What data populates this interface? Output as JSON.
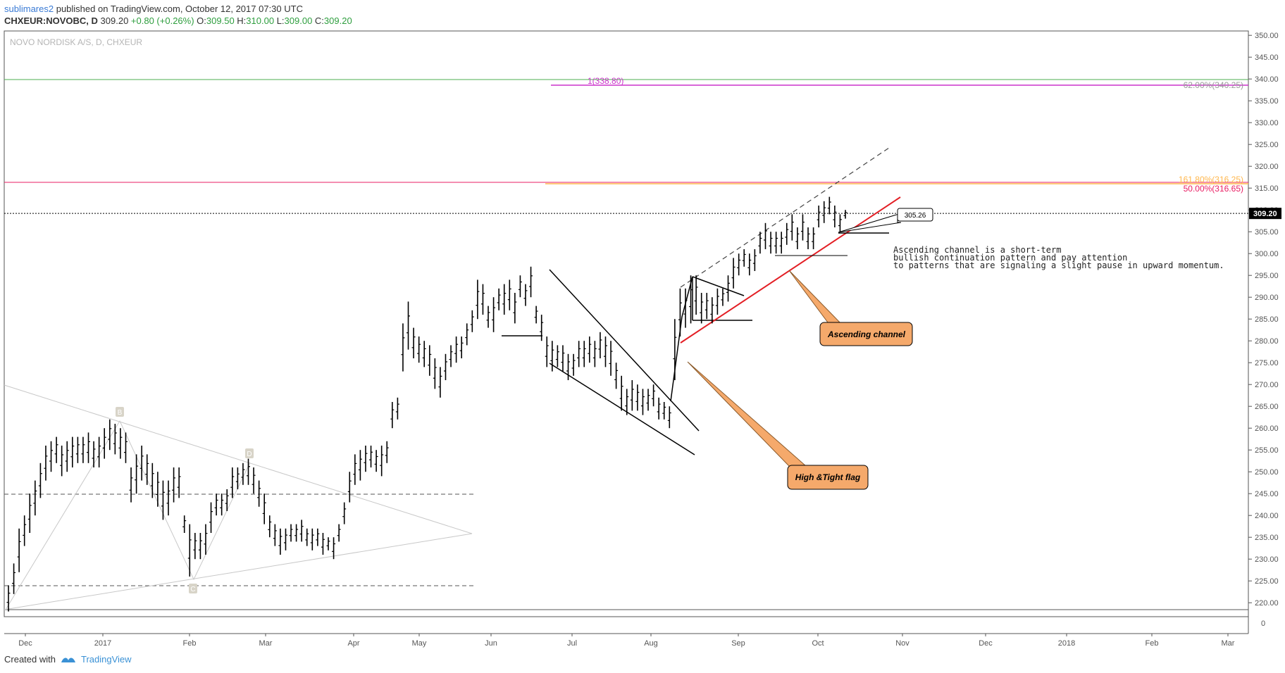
{
  "header": {
    "author": "sublimares2",
    "published_text": "published on TradingView.com, October 12, 2017 07:30 UTC",
    "symbol": "CHXEUR:NOVOBC, D",
    "last": "309.20",
    "change": "+0.80 (+0.26%)",
    "o_label": "O:",
    "o": "309.50",
    "h_label": "H:",
    "h": "310.00",
    "l_label": "L:",
    "l": "309.00",
    "c_label": "C:",
    "c": "309.20"
  },
  "chart_title": "NOVO NORDISK A/S, D, CHXEUR",
  "footer": {
    "created_with": "Created with",
    "brand": "TradingView"
  },
  "colors": {
    "candle": "#000000",
    "trend_red": "#e31e24",
    "green_line": "#4caf50",
    "pink_line": "#e91e63",
    "magenta": "#cc33cc",
    "orange": "#ffb74d",
    "callout_fill": "#f5a96b",
    "callout_stroke": "#8a5a2a",
    "triangle_gray": "#c8c8c8"
  },
  "chart_data": {
    "type": "ohlc",
    "yaxis_ticks": [
      350,
      345,
      340,
      335,
      330,
      325,
      320,
      315,
      310,
      305,
      300,
      295,
      290,
      285,
      280,
      275,
      270,
      265,
      260,
      255,
      250,
      245,
      240,
      235,
      230,
      225,
      220
    ],
    "ylim": [
      218,
      351
    ],
    "x_ticks": [
      "Dec",
      "2017",
      "Feb",
      "Mar",
      "Apr",
      "May",
      "Jun",
      "Jul",
      "Aug",
      "Sep",
      "Oct",
      "Nov",
      "Dec",
      "2018",
      "Feb",
      "Mar"
    ],
    "extra_axis_label": "0",
    "last_price_label": "309.20",
    "horizontal_levels": [
      {
        "price": 340.3,
        "color": "green"
      },
      {
        "price": 338.8,
        "color": "magenta",
        "text": "1(338.80)"
      },
      {
        "price": 316.65,
        "color": "red",
        "text": "50.00%(316.65)"
      },
      {
        "price": 316.25,
        "color": "orange",
        "text": "161.80%(316.25)"
      },
      {
        "price": 340.25,
        "text": "62.00%(340.25)"
      },
      {
        "price": 309.2,
        "style": "dotted"
      },
      {
        "price": 245.2,
        "style": "dashed"
      },
      {
        "price": 224.2,
        "style": "dashed"
      }
    ],
    "pattern_labels": [
      "B",
      "D",
      "C"
    ],
    "price_callout": "305.26",
    "annotation_text": [
      "Ascending channel is a short-term",
      "bullish continuation pattern and pay attention",
      "to patterns that are signaling a slight pause in upward momentum."
    ],
    "callouts": [
      "Ascending channel",
      "High &Tight flag"
    ],
    "bars": [
      [
        218,
        224
      ],
      [
        222,
        229
      ],
      [
        227,
        237
      ],
      [
        233,
        240
      ],
      [
        236,
        245
      ],
      [
        240,
        248
      ],
      [
        244,
        252
      ],
      [
        248,
        256
      ],
      [
        250,
        257
      ],
      [
        252,
        258
      ],
      [
        249,
        256
      ],
      [
        250,
        257
      ],
      [
        251,
        258
      ],
      [
        252,
        258
      ],
      [
        252,
        258
      ],
      [
        252,
        259
      ],
      [
        251,
        257
      ],
      [
        251,
        258
      ],
      [
        253,
        260
      ],
      [
        255,
        262
      ],
      [
        254,
        261
      ],
      [
        253,
        260
      ],
      [
        252,
        259
      ],
      [
        243,
        251
      ],
      [
        245,
        254
      ],
      [
        248,
        256
      ],
      [
        247,
        254
      ],
      [
        244,
        252
      ],
      [
        242,
        250
      ],
      [
        239,
        248
      ],
      [
        240,
        248
      ],
      [
        243,
        251
      ],
      [
        244,
        251
      ],
      [
        236,
        240
      ],
      [
        226,
        238
      ],
      [
        230,
        236
      ],
      [
        230,
        236
      ],
      [
        231,
        238
      ],
      [
        236,
        243
      ],
      [
        240,
        245
      ],
      [
        240,
        245
      ],
      [
        241,
        246
      ],
      [
        244,
        251
      ],
      [
        246,
        251
      ],
      [
        247,
        252
      ],
      [
        247,
        253
      ],
      [
        245,
        251
      ],
      [
        242,
        248
      ],
      [
        238,
        245
      ],
      [
        235,
        240
      ],
      [
        233,
        238
      ],
      [
        231,
        237
      ],
      [
        232,
        237
      ],
      [
        234,
        238
      ],
      [
        234,
        238
      ],
      [
        234,
        239
      ],
      [
        233,
        237
      ],
      [
        232,
        237
      ],
      [
        233,
        237
      ],
      [
        231,
        236
      ],
      [
        232,
        235
      ],
      [
        230,
        235
      ],
      [
        234,
        238
      ],
      [
        238,
        243
      ],
      [
        243,
        250
      ],
      [
        247,
        254
      ],
      [
        248,
        255
      ],
      [
        250,
        256
      ],
      [
        251,
        256
      ],
      [
        250,
        255
      ],
      [
        249,
        256
      ],
      [
        252,
        257
      ],
      [
        260,
        266
      ],
      [
        262,
        267
      ],
      [
        273,
        284
      ],
      [
        278,
        289
      ],
      [
        276,
        283
      ],
      [
        275,
        281
      ],
      [
        274,
        280
      ],
      [
        272,
        279
      ],
      [
        269,
        276
      ],
      [
        267,
        274
      ],
      [
        271,
        277
      ],
      [
        274,
        279
      ],
      [
        275,
        281
      ],
      [
        276,
        281
      ],
      [
        279,
        284
      ],
      [
        282,
        287
      ],
      [
        285,
        294
      ],
      [
        286,
        293
      ],
      [
        283,
        288
      ],
      [
        282,
        290
      ],
      [
        287,
        292
      ],
      [
        286,
        293
      ],
      [
        287,
        294
      ],
      [
        284,
        291
      ],
      [
        290,
        295
      ],
      [
        288,
        293
      ],
      [
        290,
        297
      ],
      [
        284,
        288
      ],
      [
        280,
        286
      ],
      [
        274,
        281
      ],
      [
        273,
        280
      ],
      [
        274,
        279
      ],
      [
        273,
        279
      ],
      [
        271,
        277
      ],
      [
        272,
        277
      ],
      [
        274,
        280
      ],
      [
        274,
        280
      ],
      [
        275,
        281
      ],
      [
        274,
        280
      ],
      [
        276,
        282
      ],
      [
        274,
        281
      ],
      [
        272,
        280
      ],
      [
        269,
        275
      ],
      [
        264,
        272
      ],
      [
        263,
        269
      ],
      [
        264,
        271
      ],
      [
        264,
        270
      ],
      [
        263,
        269
      ],
      [
        264,
        269
      ],
      [
        265,
        270
      ],
      [
        262,
        267
      ],
      [
        262,
        266
      ],
      [
        260,
        265
      ],
      [
        271,
        285
      ],
      [
        281,
        292
      ],
      [
        283,
        292
      ],
      [
        284,
        295
      ],
      [
        286,
        295
      ],
      [
        284,
        291
      ],
      [
        285,
        291
      ],
      [
        284,
        290
      ],
      [
        286,
        292
      ],
      [
        288,
        292
      ],
      [
        289,
        295
      ],
      [
        292,
        299
      ],
      [
        295,
        300
      ],
      [
        297,
        301
      ],
      [
        295,
        300
      ],
      [
        296,
        301
      ],
      [
        300,
        305
      ],
      [
        301,
        307
      ],
      [
        300,
        305
      ],
      [
        300,
        305
      ],
      [
        300,
        305
      ],
      [
        302,
        307
      ],
      [
        303,
        309
      ],
      [
        301,
        306
      ],
      [
        303,
        309
      ],
      [
        301,
        306
      ],
      [
        301,
        306
      ],
      [
        306,
        311
      ],
      [
        307,
        312
      ],
      [
        309,
        313
      ],
      [
        306,
        311
      ],
      [
        305,
        309
      ],
      [
        308,
        310
      ]
    ]
  }
}
